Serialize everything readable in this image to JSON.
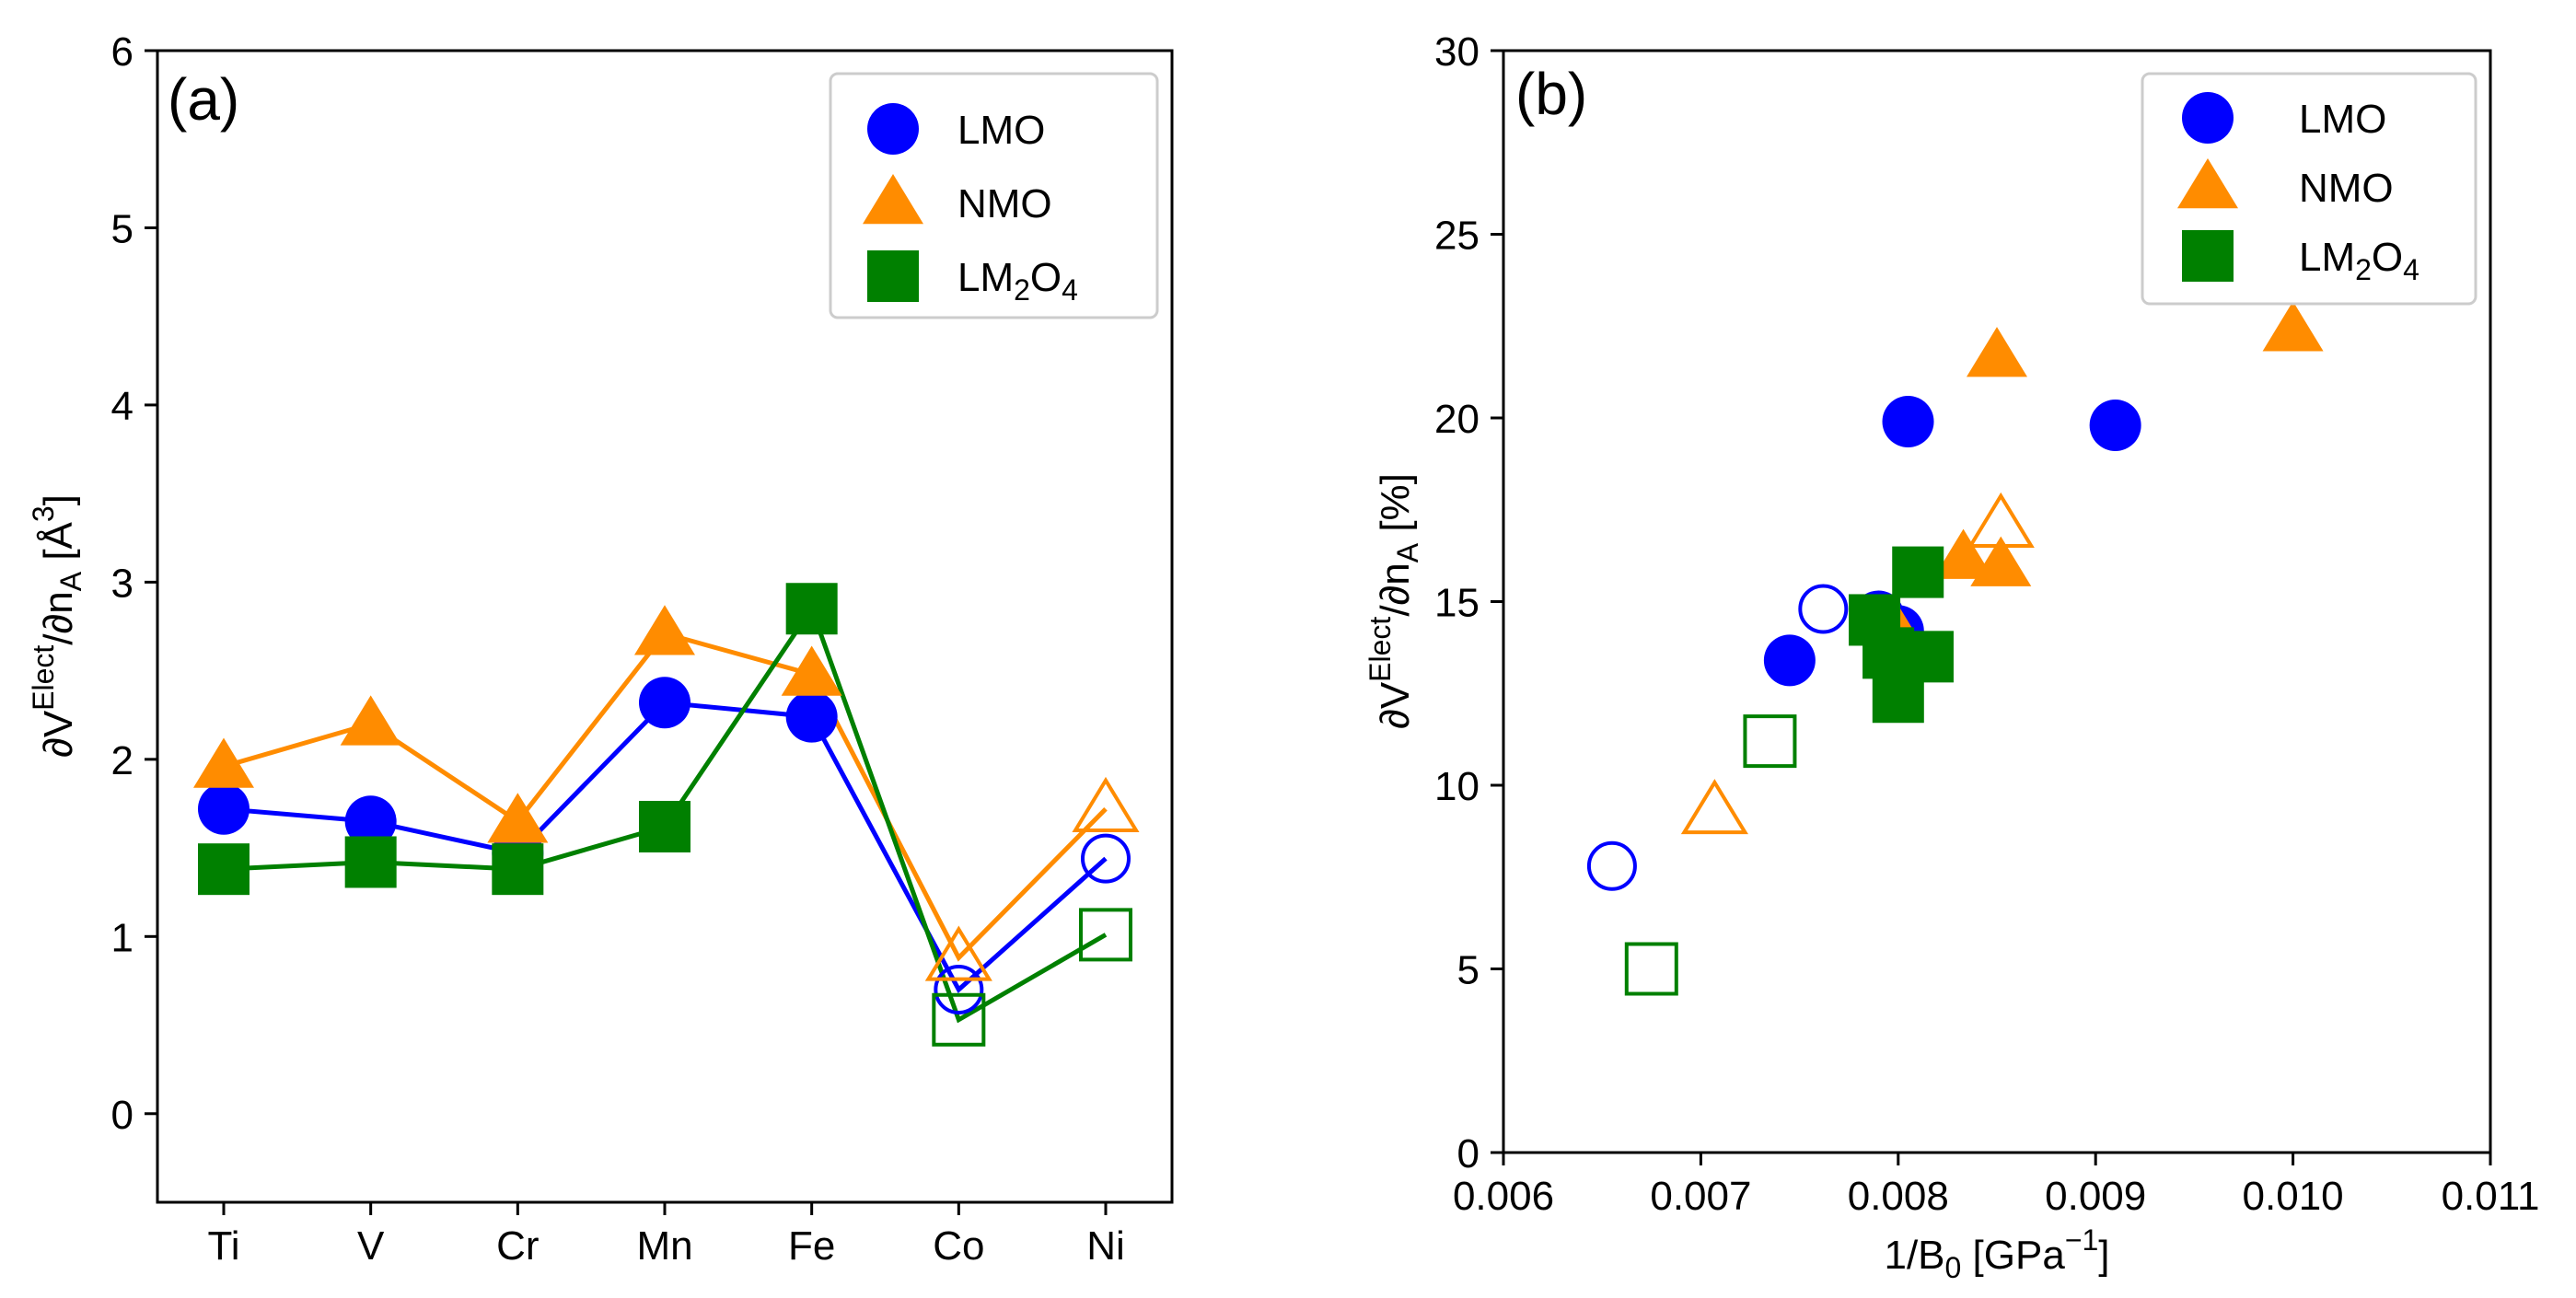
{
  "colors": {
    "LMO": "#0000ff",
    "NMO": "#ff8c00",
    "LM2O4": "#008000"
  },
  "chart_data": [
    {
      "type": "line",
      "panel_label": "(a)",
      "xlabel": "",
      "ylabel": "∂VElect/∂nA [Å3]",
      "ylabel_parts": {
        "main": "∂V",
        "sup": "Elect",
        "mid": "/∂n",
        "sub": "A",
        "unit": " [Å",
        "unit_sup": "3",
        "close": "]"
      },
      "categories": [
        "Ti",
        "V",
        "Cr",
        "Mn",
        "Fe",
        "Co",
        "Ni"
      ],
      "ylim": [
        -0.5,
        6
      ],
      "yticks": [
        "0",
        "1",
        "2",
        "3",
        "4",
        "5",
        "6"
      ],
      "legend_position": "top-right",
      "legend": [
        {
          "key": "LMO",
          "label": "LMO",
          "marker": "circle"
        },
        {
          "key": "NMO",
          "label": "NMO",
          "marker": "triangle"
        },
        {
          "key": "LM2O4",
          "label": "LM2O4",
          "label_parts": [
            "LM",
            "2",
            "O",
            "4"
          ],
          "marker": "square"
        }
      ],
      "series": [
        {
          "name": "LMO",
          "marker": "circle",
          "values": [
            1.72,
            1.65,
            1.47,
            2.32,
            2.24,
            0.7,
            1.44
          ],
          "open": [
            false,
            false,
            false,
            false,
            false,
            true,
            true
          ]
        },
        {
          "name": "NMO",
          "marker": "triangle",
          "values": [
            1.96,
            2.2,
            1.65,
            2.71,
            2.48,
            0.88,
            1.72
          ],
          "open": [
            false,
            false,
            false,
            false,
            false,
            true,
            true
          ]
        },
        {
          "name": "LM2O4",
          "marker": "square",
          "values": [
            1.38,
            1.42,
            1.38,
            1.62,
            2.85,
            0.53,
            1.01
          ],
          "open": [
            false,
            false,
            false,
            false,
            false,
            true,
            true
          ]
        }
      ]
    },
    {
      "type": "scatter",
      "panel_label": "(b)",
      "xlabel": "1/B0 [GPa−1]",
      "xlabel_parts": {
        "main": "1/B",
        "sub": "0",
        "unit": " [GPa",
        "sup": "−1",
        "close": "]"
      },
      "ylabel": "∂VElect/∂nA [%]",
      "ylabel_parts": {
        "main": "∂V",
        "sup": "Elect",
        "mid": "/∂n",
        "sub": "A",
        "unit": " [%]"
      },
      "xlim": [
        0.006,
        0.011
      ],
      "ylim": [
        0,
        30
      ],
      "xticks": [
        "0.006",
        "0.007",
        "0.008",
        "0.009",
        "0.010",
        "0.011"
      ],
      "yticks": [
        "0",
        "5",
        "10",
        "15",
        "20",
        "25",
        "30"
      ],
      "legend_position": "top-right",
      "legend": [
        {
          "key": "LMO",
          "label": "LMO",
          "marker": "circle"
        },
        {
          "key": "NMO",
          "label": "NMO",
          "marker": "triangle"
        },
        {
          "key": "LM2O4",
          "label": "LM2O4",
          "label_parts": [
            "LM",
            "2",
            "O",
            "4"
          ],
          "marker": "square"
        }
      ],
      "series": [
        {
          "name": "LMO",
          "marker": "circle",
          "x": [
            0.00805,
            0.0091,
            0.00745,
            0.0079,
            0.008,
            0.00762,
            0.00655
          ],
          "y": [
            19.9,
            19.8,
            13.4,
            14.6,
            14.2,
            14.8,
            7.8
          ],
          "open": [
            false,
            false,
            false,
            false,
            false,
            true,
            true
          ]
        },
        {
          "name": "NMO",
          "marker": "triangle",
          "x": [
            0.0085,
            0.01,
            0.00833,
            0.00852,
            0.00798,
            0.00852,
            0.00707
          ],
          "y": [
            21.7,
            22.4,
            16.2,
            16.0,
            14.3,
            17.1,
            9.3
          ],
          "open": [
            false,
            false,
            false,
            false,
            false,
            true,
            true
          ]
        },
        {
          "name": "LM2O4",
          "marker": "square",
          "x": [
            0.0081,
            0.00795,
            0.00815,
            0.008,
            0.00788,
            0.00735,
            0.00675
          ],
          "y": [
            15.8,
            13.6,
            13.5,
            12.4,
            14.5,
            11.2,
            5.0
          ],
          "open": [
            false,
            false,
            false,
            false,
            false,
            true,
            true
          ]
        }
      ]
    }
  ]
}
